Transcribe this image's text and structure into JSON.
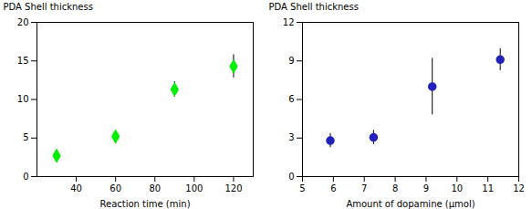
{
  "chart_data": [
    {
      "type": "scatter",
      "x": [
        30,
        60,
        90,
        120
      ],
      "values": [
        2.7,
        5.2,
        11.3,
        14.3
      ],
      "yerr": [
        0.3,
        0.7,
        1.0,
        1.5
      ],
      "xlabel": "Reaction time (min)",
      "ylabel": "PDA Shell thickness",
      "xlim": [
        20,
        130
      ],
      "ylim": [
        0,
        20
      ],
      "xticks": [
        40,
        60,
        80,
        100,
        120
      ],
      "yticks": [
        0,
        5,
        10,
        15,
        20
      ],
      "marker": "diamond",
      "color": "#00ee00"
    },
    {
      "type": "scatter",
      "x": [
        5.9,
        7.3,
        9.2,
        11.4
      ],
      "values": [
        2.8,
        3.05,
        7.0,
        9.1
      ],
      "yerr": [
        0.55,
        0.55,
        2.2,
        0.85
      ],
      "xlabel": "Amount of dopamine (μmol)",
      "ylabel": "PDA Shell thickness",
      "xlim": [
        5,
        12
      ],
      "ylim": [
        0,
        12
      ],
      "xticks": [
        5,
        6,
        7,
        8,
        9,
        10,
        11,
        12
      ],
      "yticks": [
        0,
        3,
        6,
        9,
        12
      ],
      "marker": "circle",
      "color": "#2222bb"
    }
  ]
}
